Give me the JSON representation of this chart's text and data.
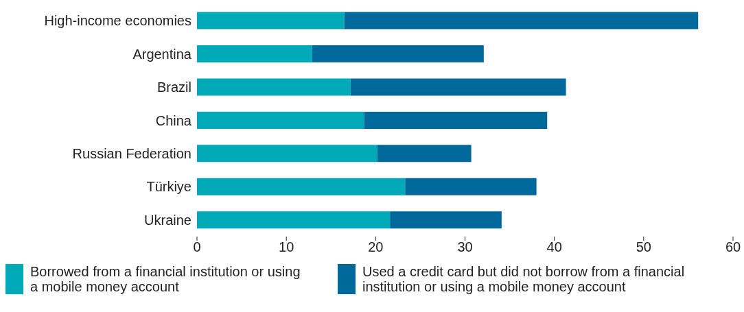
{
  "chart_data": {
    "type": "bar",
    "orientation": "horizontal",
    "stacked": true,
    "categories": [
      "High-income economies",
      "Argentina",
      "Brazil",
      "China",
      "Russian Federation",
      "Türkiye",
      "Ukraine"
    ],
    "series": [
      {
        "name": "Borrowed from a financial institution or using a mobile money account",
        "color": "#00a9b7",
        "values": [
          16.5,
          12.9,
          17.2,
          18.7,
          20.2,
          23.3,
          21.6
        ]
      },
      {
        "name": "Used a credit card but did not borrow from a financial institution or using a mobile money account",
        "color": "#00699c",
        "values": [
          39.6,
          19.2,
          24.1,
          20.5,
          10.5,
          14.7,
          12.5
        ]
      }
    ],
    "xlim": [
      0,
      60
    ],
    "xticks": [
      0,
      10,
      20,
      30,
      40,
      50,
      60
    ],
    "grid": false,
    "legend": "bottom"
  }
}
